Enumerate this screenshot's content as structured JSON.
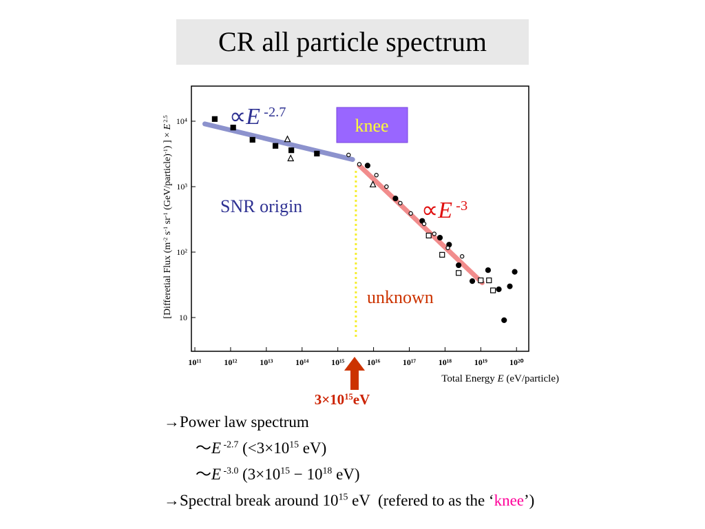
{
  "slide_title": "CR all particle spectrum",
  "chart_data": {
    "type": "scatter",
    "log_x": true,
    "log_y": true,
    "y_label": [
      {
        "t": "[Differetial Flux (m"
      },
      {
        "t": "-2",
        "sup": true
      },
      {
        "t": " s"
      },
      {
        "t": "-1",
        "sup": true
      },
      {
        "t": " sr"
      },
      {
        "t": "-1",
        "sup": true
      },
      {
        "t": " (GeV/particle)"
      },
      {
        "t": "-1",
        "sup": true
      },
      {
        "t": ") ] × "
      },
      {
        "t": "E",
        "italic": true
      },
      {
        "t": " 2.5",
        "sup": true
      }
    ],
    "x_label": [
      {
        "t": "Total Energy "
      },
      {
        "t": "E",
        "italic": true
      },
      {
        "t": " (eV/particle)"
      }
    ],
    "xlim": [
      80000000000.0,
      2.2e+20
    ],
    "ylim": [
      3.05,
      34400
    ],
    "xticks": [
      {
        "value": 100000000000.0,
        "label": "10¹¹"
      },
      {
        "value": 1000000000000.0,
        "label": "10¹²"
      },
      {
        "value": 10000000000000.0,
        "label": "10¹³"
      },
      {
        "value": 100000000000000.0,
        "label": "10¹⁴"
      },
      {
        "value": 1000000000000000.0,
        "label": "10¹⁵"
      },
      {
        "value": 1e+16,
        "label": "10¹⁶"
      },
      {
        "value": 1e+17,
        "label": "10¹⁷"
      },
      {
        "value": 1e+18,
        "label": "10¹⁸"
      },
      {
        "value": 1e+19,
        "label": "10¹⁹"
      },
      {
        "value": 1e+20,
        "label": "10²⁰"
      }
    ],
    "yticks": [
      10,
      {
        "value": 100,
        "label": "10²"
      },
      {
        "value": 1000,
        "label": "10³"
      },
      {
        "value": 10000,
        "label": "10⁴"
      }
    ],
    "series": [
      {
        "marker": "square",
        "filled": true,
        "color": "#000000",
        "x": [
          360000000000.0,
          1180000000000.0,
          4100000000000.0,
          18000000000000.0,
          50000000000000.0,
          260000000000000.0
        ],
        "values": [
          10800,
          8000,
          5200,
          4200,
          3600,
          3200
        ]
      },
      {
        "marker": "circle",
        "filled": true,
        "color": "#000000",
        "x": [
          6800000000000000.0,
          4.1e+16,
          2.3e+17,
          7.2e+17,
          1.3e+18,
          2.4e+18,
          5.8e+18,
          1.6e+19,
          3.2e+19,
          4.5e+19,
          6.5e+19,
          8.9e+19
        ],
        "values": [
          2100,
          660,
          300,
          166,
          130,
          63,
          36,
          53,
          27,
          9.1,
          30,
          50
        ]
      },
      {
        "marker": "circle",
        "filled": false,
        "color": "#000000",
        "x": [
          2000000000000000.0,
          4000000000000000.0,
          1.2e+16,
          2.3e+16,
          5.6e+16,
          1.1e+17,
          2.6e+17,
          5e+17,
          1.2e+18,
          3e+18
        ],
        "values": [
          3050,
          2200,
          1500,
          1000,
          560,
          390,
          270,
          190,
          116,
          86
        ]
      },
      {
        "marker": "triangle",
        "filled": false,
        "color": "#000000",
        "x": [
          39000000000000.0,
          48000000000000.0,
          9600000000000000.0
        ],
        "values": [
          5300,
          2700,
          1080
        ]
      },
      {
        "marker": "square",
        "filled": false,
        "color": "#000000",
        "x": [
          3.5e+17,
          8.3e+17,
          2.4e+18,
          1e+19,
          1.7e+19,
          2.2e+19
        ],
        "values": [
          179,
          91,
          48,
          37,
          37,
          26
        ]
      }
    ],
    "fit_lines": [
      {
        "color": "#7f86c8",
        "x": [
          190000000000.0,
          2600000000000000.0
        ],
        "values": [
          9100,
          2600
        ]
      },
      {
        "color": "#f07f7f",
        "x": [
          4000000000000000.0,
          1.1e+19
        ],
        "values": [
          2100,
          34
        ]
      }
    ],
    "knee_energy": 3200000000000000.0,
    "annotations": {
      "low_slope": [
        {
          "t": "∝"
        },
        {
          "t": "E",
          "italic": true
        },
        {
          "t": " -2.7",
          "sup": true
        }
      ],
      "high_slope": [
        {
          "t": "∝"
        },
        {
          "t": "E",
          "italic": true
        },
        {
          "t": " -3",
          "sup": true
        }
      ],
      "knee": "knee",
      "snr": "SNR origin",
      "unknown": "unknown",
      "break_energy": [
        {
          "t": "3×10"
        },
        {
          "t": "15",
          "sup": true
        },
        {
          "t": "eV"
        }
      ]
    }
  },
  "bullets": [
    [
      {
        "t": "→Power law spectrum"
      }
    ],
    [
      {
        "t": "～"
      },
      {
        "t": "E",
        "italic": true
      },
      {
        "t": " -2.7",
        "sup": true
      },
      {
        "t": " (<3×10"
      },
      {
        "t": "15",
        "sup": true
      },
      {
        "t": " eV)"
      }
    ],
    [
      {
        "t": "～"
      },
      {
        "t": "E",
        "italic": true
      },
      {
        "t": " -3.0",
        "sup": true
      },
      {
        "t": " (3×10"
      },
      {
        "t": "15",
        "sup": true
      },
      {
        "t": " − 10"
      },
      {
        "t": "18",
        "sup": true
      },
      {
        "t": " eV)"
      }
    ],
    [
      {
        "t": "→Spectral break around 10"
      },
      {
        "t": "15",
        "sup": true
      },
      {
        "t": " eV  (refered to as the ‘"
      },
      {
        "t": "knee",
        "color": "#ff0099"
      },
      {
        "t": "’)"
      }
    ]
  ]
}
